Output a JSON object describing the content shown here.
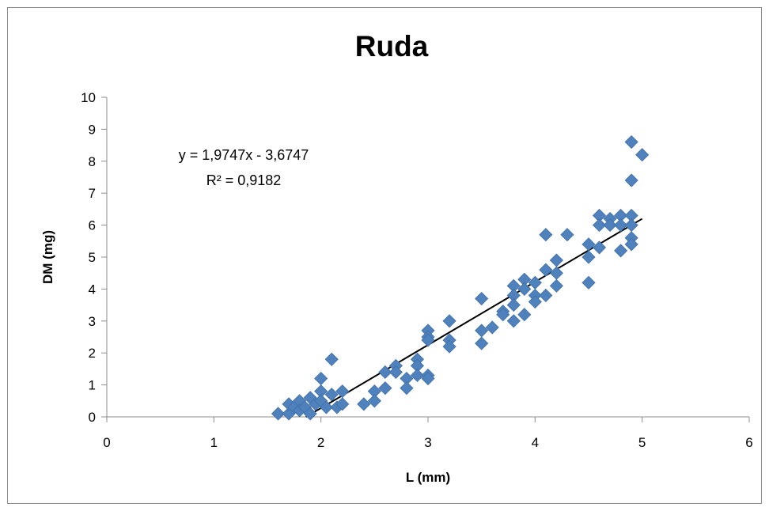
{
  "chart_data": {
    "type": "scatter",
    "title": "Ruda",
    "xlabel": "L (mm)",
    "ylabel": "DM (mg)",
    "xlim": [
      0,
      6
    ],
    "ylim": [
      0,
      10
    ],
    "x_ticks": [
      0,
      1,
      2,
      3,
      4,
      5,
      6
    ],
    "y_ticks": [
      0,
      1,
      2,
      3,
      4,
      5,
      6,
      7,
      8,
      9,
      10
    ],
    "grid": false,
    "legend": "none",
    "marker": "diamond",
    "marker_color": "#4f81bd",
    "trendline_color": "#000000",
    "trendline": {
      "slope": 1.9747,
      "intercept": -3.6747,
      "x_range": [
        1.86,
        5.0
      ],
      "equation_label": "y = 1,9747x - 3,6747",
      "r2_label": "R² = 0,9182"
    },
    "series": [
      {
        "points": [
          [
            1.6,
            0.1
          ],
          [
            1.7,
            0.1
          ],
          [
            1.7,
            0.4
          ],
          [
            1.75,
            0.3
          ],
          [
            1.8,
            0.5
          ],
          [
            1.8,
            0.2
          ],
          [
            1.85,
            0.3
          ],
          [
            1.9,
            0.6
          ],
          [
            1.9,
            0.1
          ],
          [
            1.95,
            0.4
          ],
          [
            2.0,
            1.2
          ],
          [
            2.0,
            0.8
          ],
          [
            2.0,
            0.5
          ],
          [
            2.05,
            0.3
          ],
          [
            2.1,
            1.8
          ],
          [
            2.1,
            0.7
          ],
          [
            2.15,
            0.3
          ],
          [
            2.2,
            0.8
          ],
          [
            2.2,
            0.4
          ],
          [
            2.4,
            0.4
          ],
          [
            2.5,
            0.8
          ],
          [
            2.5,
            0.5
          ],
          [
            2.6,
            1.4
          ],
          [
            2.6,
            0.9
          ],
          [
            2.7,
            1.6
          ],
          [
            2.7,
            1.4
          ],
          [
            2.8,
            1.2
          ],
          [
            2.8,
            0.9
          ],
          [
            2.9,
            1.8
          ],
          [
            2.9,
            1.6
          ],
          [
            2.9,
            1.3
          ],
          [
            3.0,
            2.7
          ],
          [
            3.0,
            2.5
          ],
          [
            3.0,
            2.4
          ],
          [
            3.0,
            1.3
          ],
          [
            3.0,
            1.2
          ],
          [
            3.2,
            3.0
          ],
          [
            3.2,
            2.4
          ],
          [
            3.2,
            2.2
          ],
          [
            3.5,
            3.7
          ],
          [
            3.5,
            2.7
          ],
          [
            3.5,
            2.3
          ],
          [
            3.6,
            2.8
          ],
          [
            3.7,
            3.3
          ],
          [
            3.7,
            3.2
          ],
          [
            3.8,
            4.1
          ],
          [
            3.8,
            3.8
          ],
          [
            3.8,
            3.5
          ],
          [
            3.8,
            3.0
          ],
          [
            3.9,
            4.3
          ],
          [
            3.9,
            4.0
          ],
          [
            3.9,
            3.2
          ],
          [
            4.0,
            4.2
          ],
          [
            4.0,
            3.8
          ],
          [
            4.0,
            3.6
          ],
          [
            4.1,
            5.7
          ],
          [
            4.1,
            4.6
          ],
          [
            4.1,
            3.8
          ],
          [
            4.2,
            4.9
          ],
          [
            4.2,
            4.5
          ],
          [
            4.2,
            4.1
          ],
          [
            4.3,
            5.7
          ],
          [
            4.5,
            5.4
          ],
          [
            4.5,
            5.0
          ],
          [
            4.5,
            4.2
          ],
          [
            4.6,
            6.3
          ],
          [
            4.6,
            6.0
          ],
          [
            4.6,
            5.3
          ],
          [
            4.7,
            6.2
          ],
          [
            4.7,
            6.0
          ],
          [
            4.8,
            6.3
          ],
          [
            4.8,
            6.0
          ],
          [
            4.8,
            5.2
          ],
          [
            4.9,
            8.6
          ],
          [
            4.9,
            7.4
          ],
          [
            4.9,
            6.3
          ],
          [
            4.9,
            6.0
          ],
          [
            4.9,
            5.6
          ],
          [
            4.9,
            5.4
          ],
          [
            5.0,
            8.2
          ]
        ]
      }
    ]
  }
}
